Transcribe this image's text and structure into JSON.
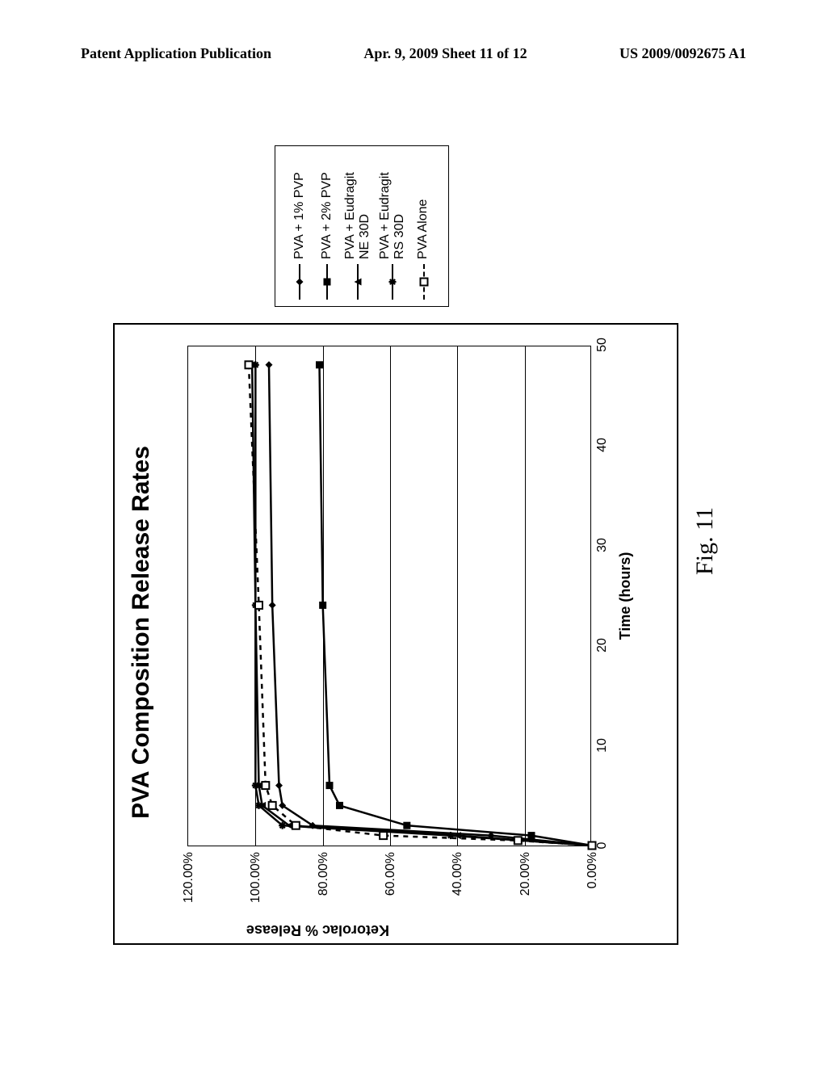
{
  "header": {
    "left": "Patent Application Publication",
    "center": "Apr. 9, 2009  Sheet 11 of 12",
    "right": "US 2009/0092675 A1"
  },
  "figure": {
    "caption": "Fig. 11",
    "chart": {
      "type": "line",
      "title": "PVA Composition Release Rates",
      "title_fontsize": 30,
      "xlabel": "Time (hours)",
      "ylabel": "Ketorolac % Release",
      "label_fontsize": 18,
      "tick_fontsize": 16,
      "xlim": [
        0,
        50
      ],
      "ylim": [
        0,
        120
      ],
      "xticks": [
        0,
        10,
        20,
        30,
        40,
        50
      ],
      "yticks": [
        {
          "v": 0,
          "label": "0.00%"
        },
        {
          "v": 20,
          "label": "20.00%"
        },
        {
          "v": 40,
          "label": "40.00%"
        },
        {
          "v": 60,
          "label": "60.00%"
        },
        {
          "v": 80,
          "label": "80.00%"
        },
        {
          "v": 100,
          "label": "100.00%"
        },
        {
          "v": 120,
          "label": "120.00%"
        }
      ],
      "grid_y": true,
      "grid_color": "#000000",
      "background_color": "#ffffff",
      "line_color": "#000000",
      "line_width": 2.5,
      "marker_size": 9,
      "series": [
        {
          "id": "pvp1",
          "label": "PVA + 1% PVP",
          "marker": "diamond",
          "dash": "solid",
          "points": [
            {
              "x": 0,
              "y": 0
            },
            {
              "x": 1,
              "y": 30
            },
            {
              "x": 2,
              "y": 83
            },
            {
              "x": 4,
              "y": 92
            },
            {
              "x": 6,
              "y": 93
            },
            {
              "x": 24,
              "y": 95
            },
            {
              "x": 48,
              "y": 96
            }
          ]
        },
        {
          "id": "pvp2",
          "label": "PVA + 2% PVP",
          "marker": "square",
          "dash": "solid",
          "points": [
            {
              "x": 0,
              "y": 0
            },
            {
              "x": 1,
              "y": 18
            },
            {
              "x": 2,
              "y": 55
            },
            {
              "x": 4,
              "y": 75
            },
            {
              "x": 6,
              "y": 78
            },
            {
              "x": 24,
              "y": 80
            },
            {
              "x": 48,
              "y": 81
            }
          ]
        },
        {
          "id": "ne30d",
          "label": "PVA + Eudragit NE 30D",
          "marker": "triangle",
          "dash": "solid",
          "points": [
            {
              "x": 0,
              "y": 0
            },
            {
              "x": 1,
              "y": 40
            },
            {
              "x": 2,
              "y": 90
            },
            {
              "x": 4,
              "y": 98
            },
            {
              "x": 6,
              "y": 99
            },
            {
              "x": 24,
              "y": 100
            },
            {
              "x": 48,
              "y": 101
            }
          ]
        },
        {
          "id": "rs30d",
          "label": "PVA + Eudragit RS 30D",
          "marker": "asterisk",
          "dash": "solid",
          "points": [
            {
              "x": 0,
              "y": 0
            },
            {
              "x": 1,
              "y": 42
            },
            {
              "x": 2,
              "y": 92
            },
            {
              "x": 4,
              "y": 99
            },
            {
              "x": 6,
              "y": 100
            },
            {
              "x": 24,
              "y": 100
            },
            {
              "x": 48,
              "y": 100
            }
          ]
        },
        {
          "id": "alone",
          "label": "PVA Alone",
          "marker": "hollow-square",
          "dash": "dashed",
          "points": [
            {
              "x": 0,
              "y": 0
            },
            {
              "x": 0.5,
              "y": 22
            },
            {
              "x": 1,
              "y": 62
            },
            {
              "x": 2,
              "y": 88
            },
            {
              "x": 4,
              "y": 95
            },
            {
              "x": 6,
              "y": 97
            },
            {
              "x": 24,
              "y": 99
            },
            {
              "x": 48,
              "y": 102
            }
          ]
        }
      ]
    }
  }
}
